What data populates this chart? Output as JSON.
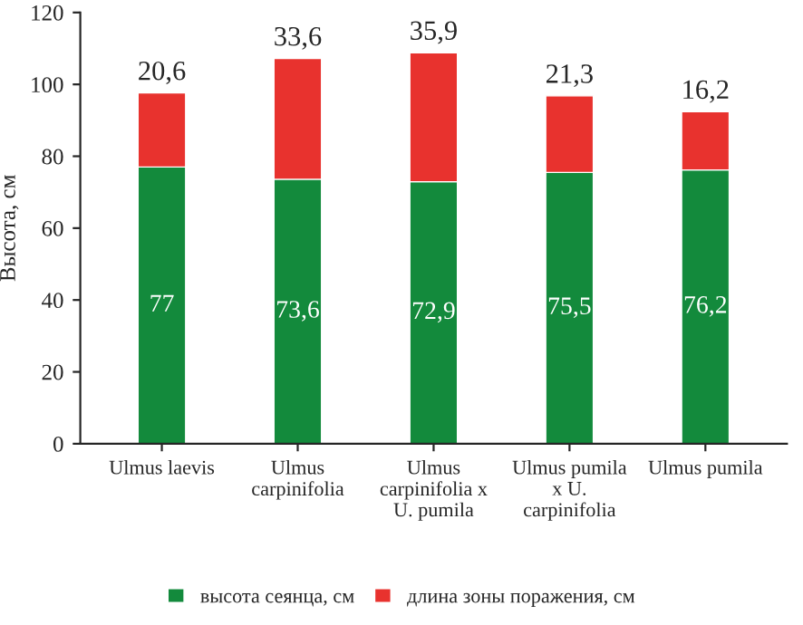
{
  "chart_data": {
    "type": "bar",
    "stacked": true,
    "ylabel": "Высота, см",
    "categories": [
      "Ulmus laevis",
      "Ulmus\ncarpinifolia",
      "Ulmus\ncarpinifolia x\nU. pumila",
      "Ulmus pumila\nx U.\ncarpinifolia",
      "Ulmus pumila"
    ],
    "series": [
      {
        "name": "высота сеянца, см",
        "color": "#138a3c",
        "values": [
          77,
          73.6,
          72.9,
          75.5,
          76.2
        ],
        "value_labels": [
          "77",
          "73,6",
          "72,9",
          "75,5",
          "76,2"
        ]
      },
      {
        "name": "длина зоны поражения, см",
        "color": "#e8322e",
        "values": [
          20.6,
          33.6,
          35.9,
          21.3,
          16.2
        ],
        "value_labels": [
          "20,6",
          "33,6",
          "35,9",
          "21,3",
          "16,2"
        ]
      }
    ],
    "ylim": [
      0,
      120
    ],
    "yticks": [
      0,
      20,
      40,
      60,
      80,
      100,
      120
    ],
    "grid": false,
    "legend": "bottom"
  }
}
